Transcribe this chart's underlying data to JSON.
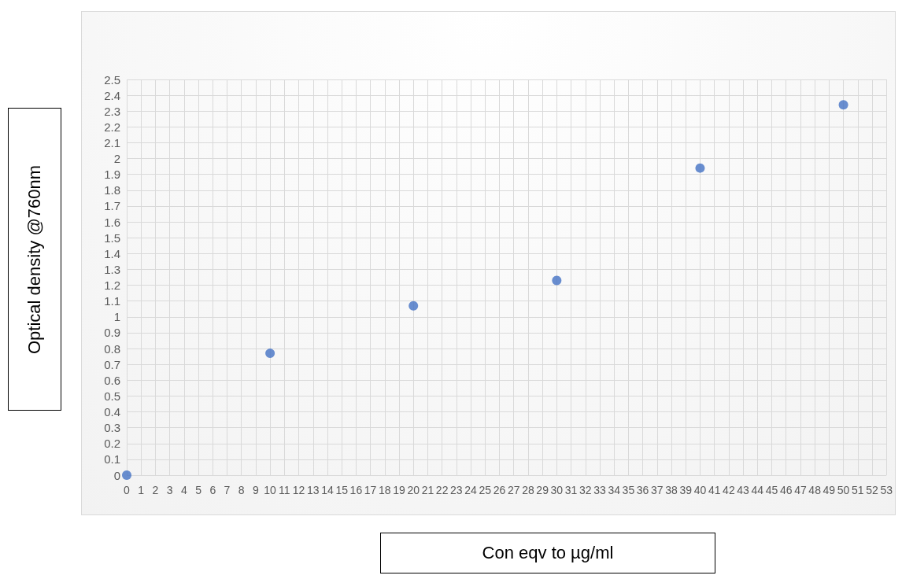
{
  "chart_data": {
    "type": "scatter",
    "xlabel": "Con eqv to µg/ml",
    "ylabel": "Optical density @760nm",
    "x": [
      0,
      10,
      20,
      30,
      40,
      50
    ],
    "series": [
      {
        "color": "#4472c4",
        "values": [
          0,
          0.77,
          1.07,
          1.23,
          1.94,
          2.34
        ]
      }
    ],
    "xlim": [
      0,
      53
    ],
    "xticks": [
      0,
      1,
      2,
      3,
      4,
      5,
      6,
      7,
      8,
      9,
      10,
      11,
      12,
      13,
      14,
      15,
      16,
      17,
      18,
      19,
      20,
      21,
      22,
      23,
      24,
      25,
      26,
      27,
      28,
      29,
      30,
      31,
      32,
      33,
      34,
      35,
      36,
      37,
      38,
      39,
      40,
      41,
      42,
      43,
      44,
      45,
      46,
      47,
      48,
      49,
      50,
      51,
      52,
      53
    ],
    "ylim": [
      0,
      2.5
    ],
    "yticks": [
      0,
      0.1,
      0.2,
      0.3,
      0.4,
      0.5,
      0.6,
      0.7,
      0.8,
      0.9,
      1,
      1.1,
      1.2,
      1.3,
      1.4,
      1.5,
      1.6,
      1.7,
      1.8,
      1.9,
      2,
      2.1,
      2.2,
      2.3,
      2.4,
      2.5
    ],
    "grid": true,
    "marker": "circle"
  }
}
